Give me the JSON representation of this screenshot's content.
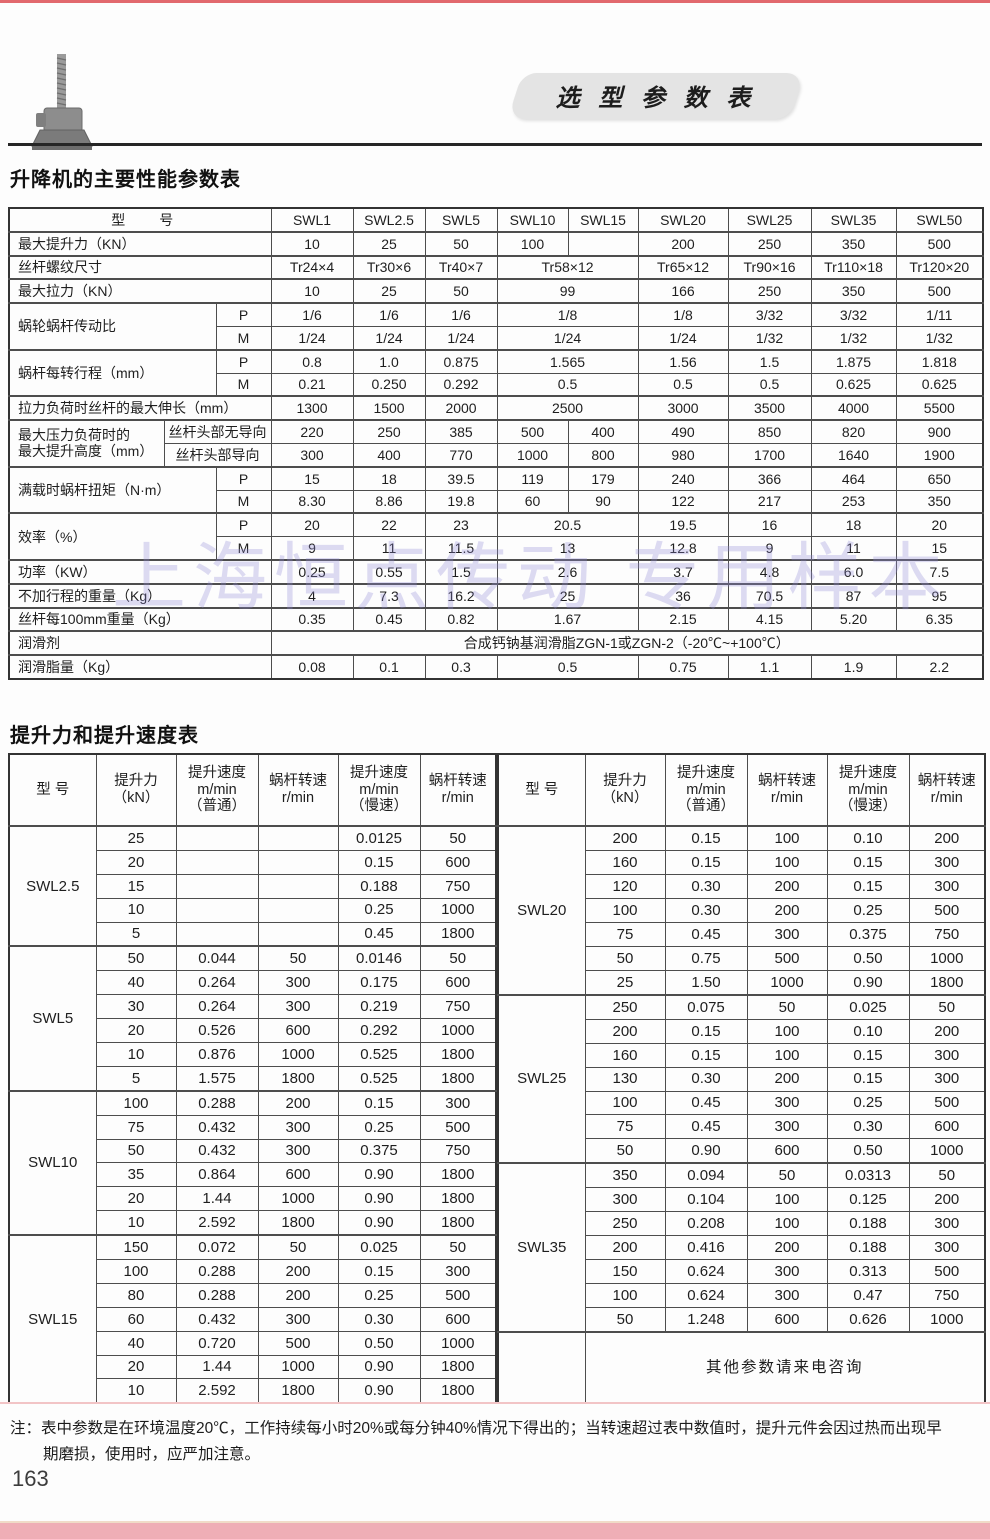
{
  "page": {
    "badge_title": "选 型 参 数 表",
    "section1_title": "升降机的主要性能参数表",
    "section2_title": "提升力和提升速度表",
    "watermark": "上海恒点传动 专用样本",
    "note_line1": "注：表中参数是在环境温度20℃，工作持续每小时20%或每分钟40%情况下得出的；当转速超过表中数值时，提升元件会因过热而出现早",
    "note_line2": "期磨损，使用时，应严加注意。",
    "page_number": "163"
  },
  "colors": {
    "top_line": "#e2696e",
    "bottom_bar": "#efaeb6",
    "badge_bg": "#e4e4e4",
    "watermark": "rgba(147,138,214,0.30)"
  },
  "main_table": {
    "header_label": "型　　号",
    "models": [
      "SWL1",
      "SWL2.5",
      "SWL5",
      "SWL10",
      "SWL15",
      "SWL20",
      "SWL25",
      "SWL35",
      "SWL50"
    ],
    "rows": [
      {
        "label": "最大提升力（KN）",
        "labelSpan": 3,
        "heavy": true,
        "cells": [
          {
            "t": "10"
          },
          {
            "t": "25"
          },
          {
            "t": "50"
          },
          {
            "t": "100"
          },
          {
            "t": ""
          },
          {
            "t": "200"
          },
          {
            "t": "250"
          },
          {
            "t": "350"
          },
          {
            "t": "500"
          }
        ]
      },
      {
        "label": "丝杆螺纹尺寸",
        "labelSpan": 3,
        "heavy": true,
        "cells": [
          {
            "t": "Tr24×4"
          },
          {
            "t": "Tr30×6"
          },
          {
            "t": "Tr40×7"
          },
          {
            "t": "Tr58×12",
            "s": 2
          },
          {
            "t": "Tr65×12"
          },
          {
            "t": "Tr90×16"
          },
          {
            "t": "Tr110×18"
          },
          {
            "t": "Tr120×20"
          }
        ]
      },
      {
        "label": "最大拉力（KN）",
        "labelSpan": 3,
        "heavy": true,
        "cells": [
          {
            "t": "10"
          },
          {
            "t": "25"
          },
          {
            "t": "50"
          },
          {
            "t": "99",
            "s": 2
          },
          {
            "t": "166"
          },
          {
            "t": "250"
          },
          {
            "t": "350"
          },
          {
            "t": "500"
          }
        ]
      },
      {
        "label": "蜗轮蜗杆传动比",
        "labelSpan": 2,
        "labelRowspan": 2,
        "sub": "P",
        "heavy": true,
        "cells": [
          {
            "t": "1/6"
          },
          {
            "t": "1/6"
          },
          {
            "t": "1/6"
          },
          {
            "t": "1/8",
            "s": 2
          },
          {
            "t": "1/8"
          },
          {
            "t": "3/32"
          },
          {
            "t": "3/32"
          },
          {
            "t": "1/11"
          }
        ]
      },
      {
        "sub": "M",
        "cells": [
          {
            "t": "1/24"
          },
          {
            "t": "1/24"
          },
          {
            "t": "1/24"
          },
          {
            "t": "1/24",
            "s": 2
          },
          {
            "t": "1/24"
          },
          {
            "t": "1/32"
          },
          {
            "t": "1/32"
          },
          {
            "t": "1/32"
          }
        ]
      },
      {
        "label": "蜗杆每转行程（mm）",
        "labelSpan": 2,
        "labelRowspan": 2,
        "sub": "P",
        "heavy": true,
        "cells": [
          {
            "t": "0.8"
          },
          {
            "t": "1.0"
          },
          {
            "t": "0.875"
          },
          {
            "t": "1.565",
            "s": 2
          },
          {
            "t": "1.56"
          },
          {
            "t": "1.5"
          },
          {
            "t": "1.875"
          },
          {
            "t": "1.818"
          }
        ]
      },
      {
        "sub": "M",
        "cells": [
          {
            "t": "0.21"
          },
          {
            "t": "0.250"
          },
          {
            "t": "0.292"
          },
          {
            "t": "0.5",
            "s": 2
          },
          {
            "t": "0.5"
          },
          {
            "t": "0.5"
          },
          {
            "t": "0.625"
          },
          {
            "t": "0.625"
          }
        ]
      },
      {
        "label": "拉力负荷时丝杆的最大伸长（mm）",
        "labelSpan": 3,
        "heavy": true,
        "cells": [
          {
            "t": "1300"
          },
          {
            "t": "1500"
          },
          {
            "t": "2000"
          },
          {
            "t": "2500",
            "s": 2
          },
          {
            "t": "3000"
          },
          {
            "t": "3500"
          },
          {
            "t": "4000"
          },
          {
            "t": "5500"
          }
        ]
      },
      {
        "label": "最大压力负荷时的\n最大提升高度（mm）",
        "labelSpan": 1,
        "labelRowspan": 2,
        "sub": "丝杆头部无导向",
        "subSpan": 2,
        "heavy": true,
        "cells": [
          {
            "t": "220"
          },
          {
            "t": "250"
          },
          {
            "t": "385"
          },
          {
            "t": "500"
          },
          {
            "t": "400"
          },
          {
            "t": "490"
          },
          {
            "t": "850"
          },
          {
            "t": "820"
          },
          {
            "t": "900"
          }
        ]
      },
      {
        "sub": "丝杆头部导向",
        "subSpan": 2,
        "cells": [
          {
            "t": "300"
          },
          {
            "t": "400"
          },
          {
            "t": "770"
          },
          {
            "t": "1000"
          },
          {
            "t": "800"
          },
          {
            "t": "980"
          },
          {
            "t": "1700"
          },
          {
            "t": "1640"
          },
          {
            "t": "1900"
          }
        ]
      },
      {
        "label": "满载时蜗杆扭矩（N·m）",
        "labelSpan": 2,
        "labelRowspan": 2,
        "sub": "P",
        "heavy": true,
        "cells": [
          {
            "t": "15"
          },
          {
            "t": "18"
          },
          {
            "t": "39.5"
          },
          {
            "t": "119"
          },
          {
            "t": "179"
          },
          {
            "t": "240"
          },
          {
            "t": "366"
          },
          {
            "t": "464"
          },
          {
            "t": "650"
          }
        ]
      },
      {
        "sub": "M",
        "cells": [
          {
            "t": "8.30"
          },
          {
            "t": "8.86"
          },
          {
            "t": "19.8"
          },
          {
            "t": "60"
          },
          {
            "t": "90"
          },
          {
            "t": "122"
          },
          {
            "t": "217"
          },
          {
            "t": "253"
          },
          {
            "t": "350"
          }
        ]
      },
      {
        "label": "效率（%）",
        "labelSpan": 2,
        "labelRowspan": 2,
        "sub": "P",
        "heavy": true,
        "cells": [
          {
            "t": "20"
          },
          {
            "t": "22"
          },
          {
            "t": "23"
          },
          {
            "t": "20.5",
            "s": 2
          },
          {
            "t": "19.5"
          },
          {
            "t": "16"
          },
          {
            "t": "18"
          },
          {
            "t": "20"
          }
        ]
      },
      {
        "sub": "M",
        "cells": [
          {
            "t": "9"
          },
          {
            "t": "11"
          },
          {
            "t": "11.5"
          },
          {
            "t": "13",
            "s": 2
          },
          {
            "t": "12.8"
          },
          {
            "t": "9"
          },
          {
            "t": "11"
          },
          {
            "t": "15"
          }
        ]
      },
      {
        "label": "功率（KW）",
        "labelSpan": 3,
        "heavy": true,
        "cells": [
          {
            "t": "0.25"
          },
          {
            "t": "0.55"
          },
          {
            "t": "1.5"
          },
          {
            "t": "2.6",
            "s": 2
          },
          {
            "t": "3.7"
          },
          {
            "t": "4.8"
          },
          {
            "t": "6.0"
          },
          {
            "t": "7.5"
          }
        ]
      },
      {
        "label": "不加行程的重量（Kg）",
        "labelSpan": 3,
        "heavy": true,
        "cells": [
          {
            "t": "4"
          },
          {
            "t": "7.3"
          },
          {
            "t": "16.2"
          },
          {
            "t": "25",
            "s": 2
          },
          {
            "t": "36"
          },
          {
            "t": "70.5"
          },
          {
            "t": "87"
          },
          {
            "t": "95"
          }
        ]
      },
      {
        "label": "丝杆每100mm重量（Kg）",
        "labelSpan": 3,
        "heavy": true,
        "cells": [
          {
            "t": "0.35"
          },
          {
            "t": "0.45"
          },
          {
            "t": "0.82"
          },
          {
            "t": "1.67",
            "s": 2
          },
          {
            "t": "2.15"
          },
          {
            "t": "4.15"
          },
          {
            "t": "5.20"
          },
          {
            "t": "6.35"
          }
        ]
      },
      {
        "label": "润滑剂",
        "labelSpan": 3,
        "heavy": true,
        "cells": [
          {
            "t": "合成钙钠基润滑脂ZGN-1或ZGN-2（-20℃~+100℃）",
            "s": 9
          }
        ]
      },
      {
        "label": "润滑脂量（Kg）",
        "labelSpan": 3,
        "heavy": true,
        "cells": [
          {
            "t": "0.08"
          },
          {
            "t": "0.1"
          },
          {
            "t": "0.3"
          },
          {
            "t": "0.5",
            "s": 2
          },
          {
            "t": "0.75"
          },
          {
            "t": "1.1"
          },
          {
            "t": "1.9"
          },
          {
            "t": "2.2"
          }
        ]
      }
    ]
  },
  "speed_table": {
    "col_headers": [
      "型 号",
      "提升力\n（kN）",
      "提升速度\nm/min\n（普通）",
      "蜗杆转速\nr/min",
      "提升速度\nm/min\n（慢速）",
      "蜗杆转速\nr/min"
    ],
    "left_groups": [
      {
        "model": "SWL2.5",
        "rows": [
          [
            "25",
            "",
            "",
            "0.0125",
            "50"
          ],
          [
            "20",
            "",
            "",
            "0.15",
            "600"
          ],
          [
            "15",
            "",
            "",
            "0.188",
            "750"
          ],
          [
            "10",
            "",
            "",
            "0.25",
            "1000"
          ],
          [
            "5",
            "",
            "",
            "0.45",
            "1800"
          ]
        ]
      },
      {
        "model": "SWL5",
        "rows": [
          [
            "50",
            "0.044",
            "50",
            "0.0146",
            "50"
          ],
          [
            "40",
            "0.264",
            "300",
            "0.175",
            "600"
          ],
          [
            "30",
            "0.264",
            "300",
            "0.219",
            "750"
          ],
          [
            "20",
            "0.526",
            "600",
            "0.292",
            "1000"
          ],
          [
            "10",
            "0.876",
            "1000",
            "0.525",
            "1800"
          ],
          [
            "5",
            "1.575",
            "1800",
            "0.525",
            "1800"
          ]
        ]
      },
      {
        "model": "SWL10",
        "rows": [
          [
            "100",
            "0.288",
            "200",
            "0.15",
            "300"
          ],
          [
            "75",
            "0.432",
            "300",
            "0.25",
            "500"
          ],
          [
            "50",
            "0.432",
            "300",
            "0.375",
            "750"
          ],
          [
            "35",
            "0.864",
            "600",
            "0.90",
            "1800"
          ],
          [
            "20",
            "1.44",
            "1000",
            "0.90",
            "1800"
          ],
          [
            "10",
            "2.592",
            "1800",
            "0.90",
            "1800"
          ]
        ]
      },
      {
        "model": "SWL15",
        "rows": [
          [
            "150",
            "0.072",
            "50",
            "0.025",
            "50"
          ],
          [
            "100",
            "0.288",
            "200",
            "0.15",
            "300"
          ],
          [
            "80",
            "0.288",
            "200",
            "0.25",
            "500"
          ],
          [
            "60",
            "0.432",
            "300",
            "0.30",
            "600"
          ],
          [
            "40",
            "0.720",
            "500",
            "0.50",
            "1000"
          ],
          [
            "20",
            "1.44",
            "1000",
            "0.90",
            "1800"
          ],
          [
            "10",
            "2.592",
            "1800",
            "0.90",
            "1800"
          ]
        ]
      }
    ],
    "right_groups": [
      {
        "model": "SWL20",
        "rows": [
          [
            "200",
            "0.15",
            "100",
            "0.10",
            "200"
          ],
          [
            "160",
            "0.15",
            "100",
            "0.15",
            "300"
          ],
          [
            "120",
            "0.30",
            "200",
            "0.15",
            "300"
          ],
          [
            "100",
            "0.30",
            "200",
            "0.25",
            "500"
          ],
          [
            "75",
            "0.45",
            "300",
            "0.375",
            "750"
          ],
          [
            "50",
            "0.75",
            "500",
            "0.50",
            "1000"
          ],
          [
            "25",
            "1.50",
            "1000",
            "0.90",
            "1800"
          ]
        ]
      },
      {
        "model": "SWL25",
        "rows": [
          [
            "250",
            "0.075",
            "50",
            "0.025",
            "50"
          ],
          [
            "200",
            "0.15",
            "100",
            "0.10",
            "200"
          ],
          [
            "160",
            "0.15",
            "100",
            "0.15",
            "300"
          ],
          [
            "130",
            "0.30",
            "200",
            "0.15",
            "300"
          ],
          [
            "100",
            "0.45",
            "300",
            "0.25",
            "500"
          ],
          [
            "75",
            "0.45",
            "300",
            "0.30",
            "600"
          ],
          [
            "50",
            "0.90",
            "600",
            "0.50",
            "1000"
          ]
        ]
      },
      {
        "model": "SWL35",
        "rows": [
          [
            "350",
            "0.094",
            "50",
            "0.0313",
            "50"
          ],
          [
            "300",
            "0.104",
            "100",
            "0.125",
            "200"
          ],
          [
            "250",
            "0.208",
            "100",
            "0.188",
            "300"
          ],
          [
            "200",
            "0.416",
            "200",
            "0.188",
            "300"
          ],
          [
            "150",
            "0.624",
            "300",
            "0.313",
            "500"
          ],
          [
            "100",
            "0.624",
            "300",
            "0.47",
            "750"
          ],
          [
            "50",
            "1.248",
            "600",
            "0.626",
            "1000"
          ]
        ]
      }
    ],
    "right_footer": "其他参数请来电咨询"
  }
}
